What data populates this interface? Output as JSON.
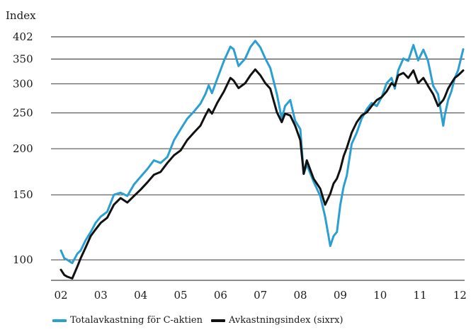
{
  "chart_data": {
    "type": "line",
    "ylabel": "Index",
    "xlabel": "",
    "y_scale": "log",
    "ylim": [
      88,
      402
    ],
    "y_ticks": [
      100,
      150,
      200,
      250,
      300,
      350,
      402
    ],
    "y_tick_labels": [
      "100",
      "150",
      "200",
      "250",
      "300",
      "350",
      "402"
    ],
    "x_range": [
      "2002-01-01",
      "2012-01-31"
    ],
    "x_ticks": [
      "2002-01-01",
      "2003-01-01",
      "2004-01-01",
      "2005-01-01",
      "2006-01-01",
      "2007-01-01",
      "2008-01-01",
      "2009-01-01",
      "2010-01-01",
      "2011-01-01",
      "2012-01-01"
    ],
    "x_tick_labels": [
      "02",
      "03",
      "04",
      "05",
      "06",
      "07",
      "08",
      "09",
      "10",
      "11",
      "12"
    ],
    "grid": "horizontal",
    "legend_position": "bottom",
    "series": [
      {
        "name": "Totalavkastning för C-aktien",
        "color": "#2b9fd1",
        "x": [
          "2002-01-01",
          "2002-02-01",
          "2002-03-01",
          "2002-04-15",
          "2002-06-01",
          "2002-07-01",
          "2002-08-15",
          "2002-10-01",
          "2002-11-15",
          "2003-01-01",
          "2003-03-01",
          "2003-05-01",
          "2003-07-01",
          "2003-09-01",
          "2003-11-01",
          "2004-01-01",
          "2004-03-01",
          "2004-05-01",
          "2004-07-01",
          "2004-09-01",
          "2004-11-01",
          "2005-01-01",
          "2005-03-01",
          "2005-05-01",
          "2005-07-01",
          "2005-08-15",
          "2005-09-15",
          "2005-10-15",
          "2005-12-01",
          "2006-02-01",
          "2006-04-01",
          "2006-05-01",
          "2006-06-15",
          "2006-08-15",
          "2006-10-01",
          "2006-11-15",
          "2007-01-01",
          "2007-02-15",
          "2007-04-01",
          "2007-06-01",
          "2007-07-15",
          "2007-08-15",
          "2007-10-01",
          "2007-11-15",
          "2008-01-01",
          "2008-02-01",
          "2008-03-01",
          "2008-05-01",
          "2008-07-01",
          "2008-08-15",
          "2008-10-01",
          "2008-11-01",
          "2008-12-01",
          "2009-01-01",
          "2009-02-01",
          "2009-03-01",
          "2009-04-15",
          "2009-06-01",
          "2009-07-15",
          "2009-09-01",
          "2009-10-15",
          "2009-12-01",
          "2010-01-15",
          "2010-03-01",
          "2010-04-15",
          "2010-05-15",
          "2010-06-15",
          "2010-08-01",
          "2010-09-15",
          "2010-11-01",
          "2010-12-15",
          "2011-02-01",
          "2011-03-15",
          "2011-05-01",
          "2011-06-15",
          "2011-08-01",
          "2011-08-15",
          "2011-09-15",
          "2011-10-15",
          "2011-11-15",
          "2011-12-15",
          "2012-01-31"
        ],
        "values": [
          106,
          101,
          100,
          98,
          104,
          106,
          113,
          119,
          126,
          131,
          135,
          150,
          152,
          149,
          160,
          168,
          176,
          186,
          183,
          190,
          211,
          226,
          241,
          252,
          265,
          281,
          297,
          283,
          309,
          346,
          378,
          372,
          335,
          351,
          377,
          392,
          376,
          351,
          331,
          281,
          241,
          261,
          271,
          238,
          226,
          171,
          181,
          163,
          149,
          131,
          109,
          116,
          119,
          141,
          158,
          169,
          206,
          221,
          241,
          256,
          266,
          261,
          276,
          301,
          311,
          291,
          326,
          351,
          346,
          382,
          347,
          371,
          346,
          296,
          281,
          231,
          246,
          271,
          286,
          311,
          326,
          372
        ]
      },
      {
        "name": "Avkastningsindex (sixrx)",
        "color": "#111111",
        "x": [
          "2002-01-01",
          "2002-02-01",
          "2002-03-01",
          "2002-04-15",
          "2002-06-01",
          "2002-07-01",
          "2002-08-15",
          "2002-10-01",
          "2002-11-15",
          "2003-01-01",
          "2003-03-01",
          "2003-05-01",
          "2003-07-01",
          "2003-09-01",
          "2003-11-01",
          "2004-01-01",
          "2004-03-01",
          "2004-05-01",
          "2004-07-01",
          "2004-09-01",
          "2004-11-01",
          "2005-01-01",
          "2005-03-01",
          "2005-05-01",
          "2005-07-01",
          "2005-08-15",
          "2005-09-15",
          "2005-10-15",
          "2005-12-01",
          "2006-02-01",
          "2006-04-01",
          "2006-05-01",
          "2006-06-15",
          "2006-08-15",
          "2006-10-01",
          "2006-11-15",
          "2007-01-01",
          "2007-02-15",
          "2007-04-01",
          "2007-06-01",
          "2007-07-15",
          "2007-08-15",
          "2007-10-01",
          "2007-11-15",
          "2008-01-01",
          "2008-02-01",
          "2008-03-01",
          "2008-05-01",
          "2008-07-01",
          "2008-08-15",
          "2008-10-01",
          "2008-11-01",
          "2008-12-01",
          "2009-01-01",
          "2009-02-01",
          "2009-03-01",
          "2009-04-15",
          "2009-06-01",
          "2009-07-15",
          "2009-09-01",
          "2009-10-15",
          "2009-12-01",
          "2010-01-15",
          "2010-03-01",
          "2010-04-15",
          "2010-05-15",
          "2010-06-15",
          "2010-08-01",
          "2010-09-15",
          "2010-11-01",
          "2010-12-15",
          "2011-02-01",
          "2011-03-15",
          "2011-05-01",
          "2011-06-15",
          "2011-08-01",
          "2011-08-15",
          "2011-09-15",
          "2011-10-15",
          "2011-11-15",
          "2011-12-15",
          "2012-01-31"
        ],
        "values": [
          94,
          91,
          90,
          89,
          96,
          101,
          108,
          116,
          121,
          126,
          130,
          141,
          147,
          143,
          149,
          155,
          162,
          170,
          173,
          183,
          192,
          198,
          211,
          221,
          231,
          246,
          256,
          249,
          266,
          286,
          311,
          306,
          292,
          301,
          316,
          328,
          316,
          301,
          291,
          251,
          236,
          249,
          246,
          231,
          211,
          171,
          186,
          166,
          156,
          141,
          151,
          161,
          166,
          176,
          191,
          201,
          221,
          236,
          246,
          251,
          261,
          271,
          276,
          286,
          301,
          296,
          316,
          321,
          311,
          326,
          301,
          311,
          296,
          281,
          261,
          271,
          276,
          291,
          301,
          311,
          316,
          326
        ]
      }
    ]
  }
}
